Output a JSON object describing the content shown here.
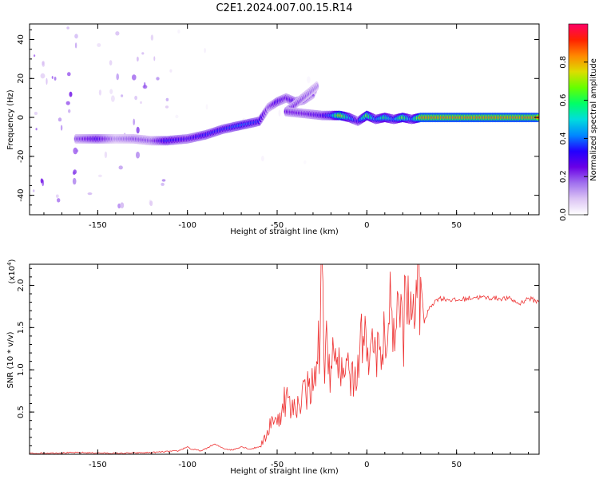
{
  "figure": {
    "title": "C2E1.2024.007.00.15.R14"
  },
  "colorbar": {
    "label": "Normalized spectral amplitude",
    "ticks": [
      "0.0",
      "0.2",
      "0.4",
      "0.6",
      "0.8"
    ],
    "tick_values": [
      0.0,
      0.2,
      0.4,
      0.6,
      0.8
    ],
    "range": [
      0,
      1
    ],
    "colormap": [
      "#ffffff",
      "#dcc4f4",
      "#a070ee",
      "#6a00e6",
      "#2200ff",
      "#0088ff",
      "#00dddd",
      "#00ff66",
      "#66ff00",
      "#dddd00",
      "#ff8800",
      "#ff2200",
      "#ff0066"
    ]
  },
  "chart_data": [
    {
      "type": "heatmap",
      "title": "",
      "xlabel": "Height of straight line (km)",
      "ylabel": "Frequency (Hz)",
      "xlim": [
        -188,
        96
      ],
      "ylim": [
        -50,
        48
      ],
      "x_ticks": [
        -150,
        -100,
        -50,
        0,
        50
      ],
      "x_tick_labels": [
        "-150",
        "-100",
        "-50",
        "0",
        "50"
      ],
      "y_ticks": [
        -40,
        -20,
        0,
        20,
        40
      ],
      "y_tick_labels": [
        "-40",
        "-20",
        "0",
        "20",
        "40"
      ],
      "noise": [
        {
          "x": [
            -188,
            -160
          ],
          "y": [
            -50,
            48
          ],
          "intensity": 0.2
        },
        {
          "x": [
            -160,
            -140
          ],
          "y": [
            -50,
            48
          ],
          "intensity": 0.08
        },
        {
          "x": [
            -140,
            -110
          ],
          "y": [
            -50,
            48
          ],
          "intensity": 0.18
        },
        {
          "x": [
            -110,
            -90
          ],
          "y": [
            -50,
            48
          ],
          "intensity": 0.04
        },
        {
          "x": [
            -90,
            -30
          ],
          "y": [
            -25,
            30
          ],
          "intensity": 0.02
        }
      ],
      "ridge": [
        {
          "x": -162,
          "y": -11,
          "amp": 0.2
        },
        {
          "x": -150,
          "y": -11,
          "amp": 0.3
        },
        {
          "x": -140,
          "y": -11,
          "amp": 0.15
        },
        {
          "x": -130,
          "y": -11,
          "amp": 0.2
        },
        {
          "x": -120,
          "y": -12,
          "amp": 0.2
        },
        {
          "x": -112,
          "y": -12,
          "amp": 0.35
        },
        {
          "x": -100,
          "y": -11,
          "amp": 0.3
        },
        {
          "x": -90,
          "y": -9,
          "amp": 0.35
        },
        {
          "x": -80,
          "y": -6,
          "amp": 0.35
        },
        {
          "x": -70,
          "y": -4,
          "amp": 0.4
        },
        {
          "x": -60,
          "y": -2,
          "amp": 0.35
        },
        {
          "x": -55,
          "y": 5,
          "amp": 0.2
        },
        {
          "x": -50,
          "y": 8,
          "amp": 0.3
        },
        {
          "x": -45,
          "y": 10,
          "amp": 0.25
        },
        {
          "x": -40,
          "y": 8,
          "amp": 0.3
        },
        {
          "x": -35,
          "y": 9,
          "amp": 0.25
        },
        {
          "x": -30,
          "y": 12,
          "amp": 0.2
        },
        {
          "x": -28,
          "y": 16,
          "amp": 0.15
        },
        {
          "x": -45,
          "y": 3,
          "amp": 0.25
        },
        {
          "x": -35,
          "y": 2,
          "amp": 0.25
        },
        {
          "x": -25,
          "y": 1,
          "amp": 0.3
        },
        {
          "x": -20,
          "y": 1,
          "amp": 0.4
        },
        {
          "x": -15,
          "y": 1,
          "amp": 0.8
        },
        {
          "x": -10,
          "y": 0,
          "amp": 0.5
        },
        {
          "x": -5,
          "y": -2,
          "amp": 0.3
        },
        {
          "x": 0,
          "y": 1,
          "amp": 0.7
        },
        {
          "x": 5,
          "y": -1,
          "amp": 0.4
        },
        {
          "x": 10,
          "y": 0,
          "amp": 0.6
        },
        {
          "x": 15,
          "y": -1,
          "amp": 0.4
        },
        {
          "x": 20,
          "y": 0,
          "amp": 0.7
        },
        {
          "x": 25,
          "y": -1,
          "amp": 0.4
        },
        {
          "x": 30,
          "y": 0,
          "amp": 0.85
        },
        {
          "x": 40,
          "y": 0,
          "amp": 0.85
        },
        {
          "x": 50,
          "y": 0,
          "amp": 0.85
        },
        {
          "x": 60,
          "y": 0,
          "amp": 0.85
        },
        {
          "x": 70,
          "y": 0,
          "amp": 0.85
        },
        {
          "x": 80,
          "y": 0,
          "amp": 0.85
        },
        {
          "x": 90,
          "y": 0,
          "amp": 0.85
        },
        {
          "x": 96,
          "y": 0,
          "amp": 0.85
        }
      ]
    },
    {
      "type": "line",
      "title": "",
      "xlabel": "Height of straight line (km)",
      "ylabel": "SNR (10 * v/v)",
      "y_multiplier_label": "(x10",
      "y_multiplier_exponent": "4",
      "y_multiplier_close": ")",
      "xlim": [
        -188,
        96
      ],
      "ylim": [
        0,
        2.25
      ],
      "x_ticks": [
        -150,
        -100,
        -50,
        0,
        50
      ],
      "x_tick_labels": [
        "-150",
        "-100",
        "-50",
        "0",
        "50"
      ],
      "y_ticks": [
        0.5,
        1.0,
        1.5,
        2.0
      ],
      "y_tick_labels": [
        "0.5",
        "1.0",
        "1.5",
        "2.0"
      ],
      "color": "#ee3333",
      "series": [
        {
          "x": [
            -188,
            -160,
            -140,
            -120,
            -105,
            -100,
            -98,
            -92,
            -85,
            -80,
            -75,
            -70,
            -65,
            -60,
            -56,
            -53,
            -50,
            -47,
            -45,
            -42,
            -40,
            -38,
            -36,
            -34,
            -32,
            -30,
            -28,
            -26,
            -25,
            -24,
            -22,
            -20,
            -18,
            -16,
            -14,
            -12,
            -10,
            -8,
            -6,
            -4,
            -2,
            0,
            2,
            4,
            6,
            8,
            10,
            12,
            14,
            16,
            18,
            20,
            22,
            24,
            26,
            28,
            30,
            32,
            35,
            40,
            50,
            60,
            70,
            80,
            85,
            90,
            96
          ],
          "y": [
            0.01,
            0.02,
            0.01,
            0.02,
            0.04,
            0.09,
            0.06,
            0.04,
            0.12,
            0.07,
            0.05,
            0.09,
            0.06,
            0.09,
            0.2,
            0.45,
            0.35,
            0.6,
            0.7,
            0.5,
            0.55,
            0.6,
            0.8,
            0.7,
            0.9,
            0.75,
            1.1,
            1.4,
            2.3,
            1.2,
            1.3,
            1.05,
            1.1,
            0.9,
            1.15,
            0.95,
            1.0,
            1.1,
            0.75,
            1.2,
            1.4,
            1.1,
            1.3,
            1.2,
            1.45,
            1.0,
            1.4,
            1.55,
            1.7,
            1.45,
            1.75,
            1.5,
            1.8,
            1.6,
            1.9,
            1.85,
            2.1,
            1.55,
            1.75,
            1.85,
            1.82,
            1.86,
            1.85,
            1.84,
            1.78,
            1.85,
            1.8
          ]
        }
      ]
    }
  ]
}
